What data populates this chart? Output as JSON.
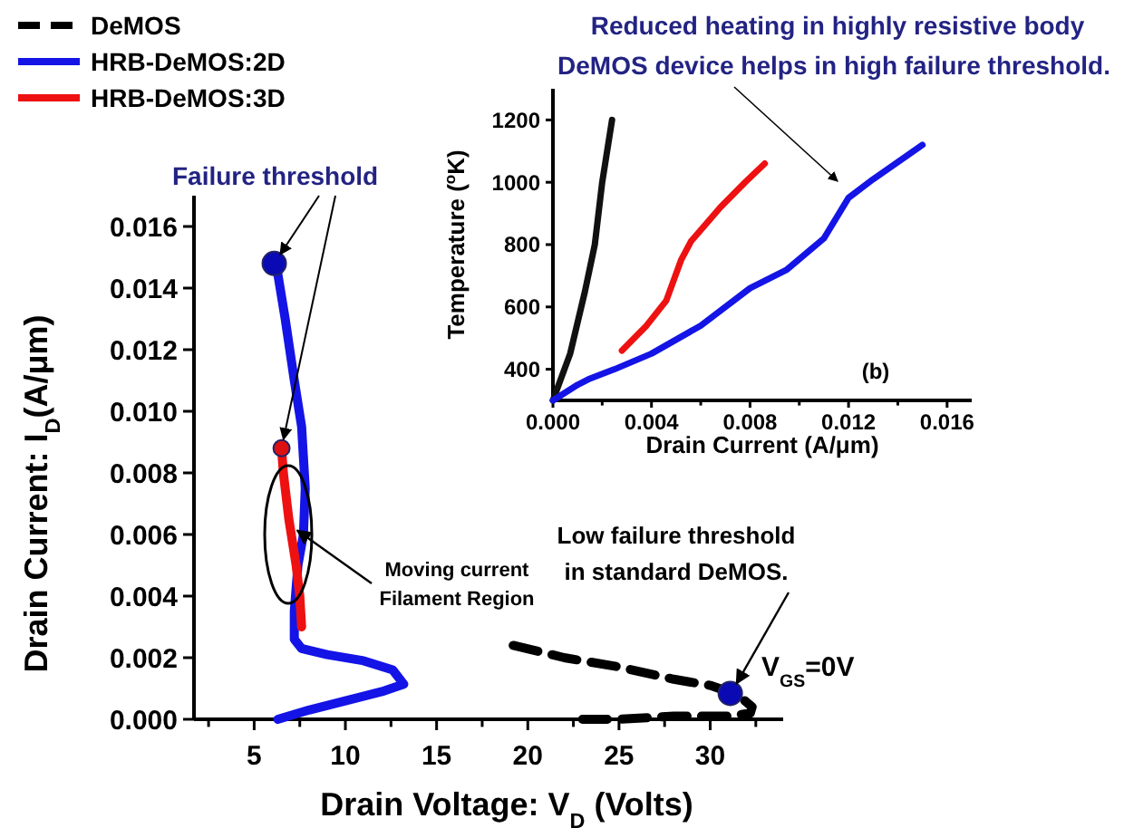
{
  "chart_data": [
    {
      "type": "line",
      "xlabel": "Drain Voltage: V$_{D}$ (Volts)",
      "ylabel": "Drain Current: I$_{D}$(A/μm)",
      "xlim": [
        1.7,
        34
      ],
      "ylim": [
        0,
        0.017
      ],
      "xticks": [
        {
          "value": 2.5,
          "label": null
        },
        5,
        {
          "value": 7.5,
          "label": null
        },
        10,
        {
          "value": 12.5,
          "label": null
        },
        15,
        {
          "value": 17.5,
          "label": null
        },
        20,
        {
          "value": 22.5,
          "label": null
        },
        25,
        {
          "value": 27.5,
          "label": null
        },
        30,
        {
          "value": 32.5,
          "label": null
        }
      ],
      "yticks": [
        {
          "value": 0,
          "label": "0.000"
        },
        {
          "value": 0.002,
          "label": "0.002"
        },
        {
          "value": 0.004,
          "label": "0.004"
        },
        {
          "value": 0.006,
          "label": "0.006"
        },
        {
          "value": 0.008,
          "label": "0.008"
        },
        {
          "value": 0.01,
          "label": "0.010"
        },
        {
          "value": 0.012,
          "label": "0.012"
        },
        {
          "value": 0.014,
          "label": "0.014"
        },
        {
          "value": 0.016,
          "label": "0.016"
        }
      ],
      "grid": false,
      "legend": "top left",
      "series": [
        {
          "name": "DeMOS",
          "color": "#000000",
          "line_style": "dashed",
          "x": [
            19.2,
            22,
            25,
            28,
            30,
            31.5,
            32.3,
            32.2,
            31,
            28,
            25,
            23
          ],
          "values": [
            0.0024,
            0.002,
            0.0017,
            0.0013,
            0.0011,
            0.0008,
            0.0004,
            0.0002,
            0.0001,
            0.0001,
            0,
            0
          ]
        },
        {
          "name": "HRB-DeMOS:2D",
          "color": "#1414e6",
          "x": [
            6.3,
            8,
            10,
            12,
            13.2,
            12.6,
            11,
            9,
            7.6,
            7.2,
            7.2,
            7.4,
            7.7,
            7.8,
            7.6,
            7.2,
            6.7,
            6.2
          ],
          "values": [
            0,
            0.0003,
            0.0006,
            0.0009,
            0.00114,
            0.0016,
            0.0019,
            0.0021,
            0.0023,
            0.0026,
            0.0035,
            0.005,
            0.006,
            0.0075,
            0.0095,
            0.011,
            0.013,
            0.0148
          ]
        },
        {
          "name": "HRB-DeMOS:3D",
          "color": "#ee1111",
          "x": [
            7.6,
            7.5,
            7.3,
            6.9,
            6.7,
            6.6,
            6.5
          ],
          "values": [
            0.003,
            0.004,
            0.005,
            0.0065,
            0.0075,
            0.008,
            0.0088
          ]
        },
        {
          "type": "scatter",
          "color": "#0a0ab4",
          "x": [
            6.1,
            31.1
          ],
          "values": [
            0.0148,
            0.00084
          ]
        },
        {
          "type": "scatter",
          "color": "#dd1111",
          "x": [
            6.5
          ],
          "values": [
            0.0088
          ]
        }
      ],
      "annotations": [
        {
          "text": "Failure threshold",
          "x": 6.1,
          "y": 0.0148
        },
        {
          "text": "Moving current Filament Region",
          "x": 7.2,
          "y": 0.0062
        },
        {
          "text": "Low failure threshold in standard DeMOS.",
          "x": 31.1,
          "y": 0.0008
        },
        "V$_{GS}$=0V"
      ]
    },
    {
      "type": "line",
      "xlabel": "Drain Current (A/μm)",
      "ylabel": "Temperature ($^{o}$K)",
      "xlim": [
        0,
        0.017
      ],
      "ylim": [
        300,
        1300
      ],
      "xticks": [
        {
          "value": 0,
          "label": "0.000"
        },
        {
          "value": 0.002,
          "label": null
        },
        {
          "value": 0.004,
          "label": "0.004"
        },
        {
          "value": 0.006,
          "label": null
        },
        {
          "value": 0.008,
          "label": "0.008"
        },
        {
          "value": 0.01,
          "label": null
        },
        {
          "value": 0.012,
          "label": "0.012"
        },
        {
          "value": 0.014,
          "label": null
        },
        {
          "value": 0.016,
          "label": "0.016"
        }
      ],
      "yticks": [
        400,
        600,
        800,
        1000,
        1200
      ],
      "grid": false,
      "series": [
        {
          "color": "#111111",
          "x": [
            0,
            0.0007,
            0.0013,
            0.0017,
            0.002,
            0.0024
          ],
          "values": [
            300,
            450,
            650,
            800,
            1000,
            1200
          ]
        },
        {
          "color": "#ee1111",
          "x": [
            0.0028,
            0.0038,
            0.0046,
            0.0052,
            0.0056,
            0.0068,
            0.0078,
            0.0086
          ],
          "values": [
            460,
            540,
            620,
            750,
            810,
            920,
            1000,
            1060
          ]
        },
        {
          "color": "#1414e6",
          "x": [
            0,
            0.001,
            0.0015,
            0.0025,
            0.004,
            0.006,
            0.008,
            0.0095,
            0.011,
            0.012,
            0.013,
            0.015
          ],
          "values": [
            300,
            350,
            370,
            400,
            450,
            540,
            660,
            720,
            820,
            950,
            1010,
            1120
          ]
        }
      ],
      "annotations": [
        "(b)",
        "Reduced heating in highly resistive body",
        "DeMOS device helps in high failure threshold."
      ]
    }
  ]
}
